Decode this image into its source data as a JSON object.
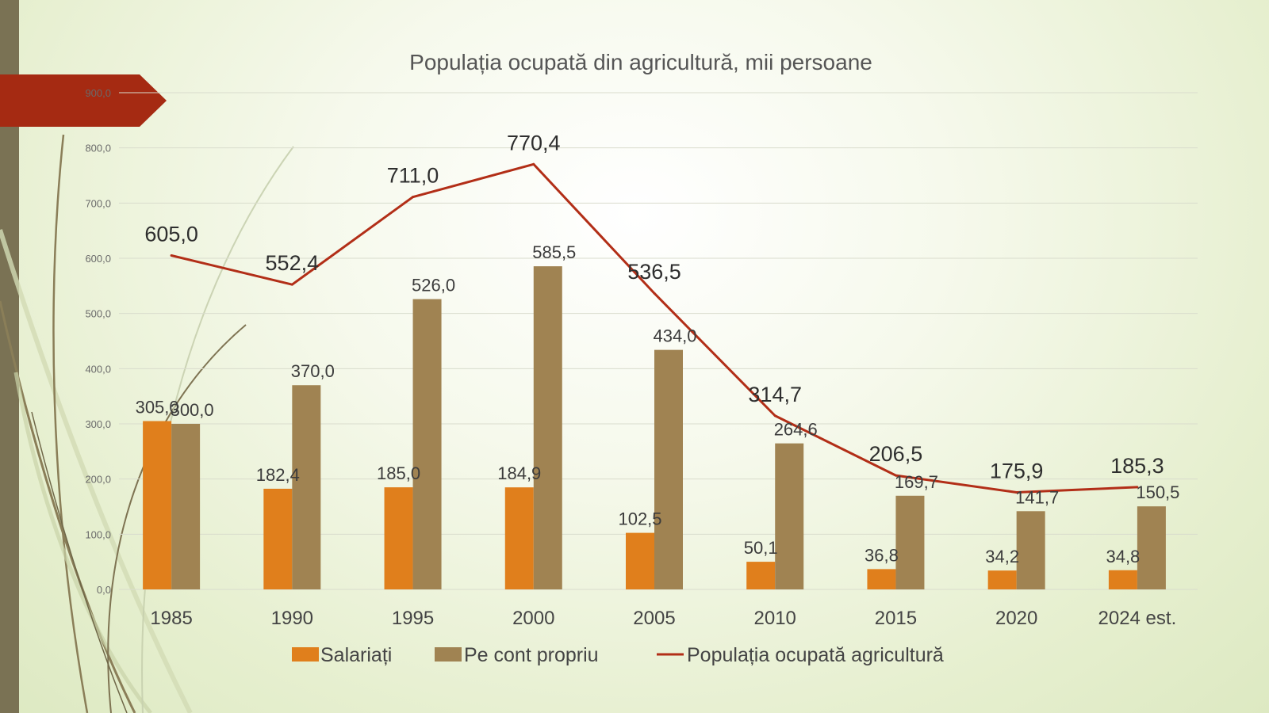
{
  "colors": {
    "salariati": "#e07f1c",
    "pe_cont_propriu": "#a08352",
    "line": "#b22e17",
    "accent_tab": "#a52a12",
    "sidebar": "#7a7254"
  },
  "chart_data": {
    "type": "bar",
    "title": "Populația ocupată din agricultură, mii persoane",
    "categories": [
      "1985",
      "1990",
      "1995",
      "2000",
      "2005",
      "2010",
      "2015",
      "2020",
      "2024 est."
    ],
    "ylim": [
      0,
      900
    ],
    "y_ticks": [
      "0,0",
      "100,0",
      "200,0",
      "300,0",
      "400,0",
      "500,0",
      "600,0",
      "700,0",
      "800,0",
      "900,0"
    ],
    "grid": true,
    "legend_position": "bottom",
    "series": [
      {
        "name": "Salariați",
        "kind": "bar",
        "values": [
          305.0,
          182.4,
          185.0,
          184.9,
          102.5,
          50.1,
          36.8,
          34.2,
          34.8
        ],
        "labels": [
          "305,0",
          "182,4",
          "185,0",
          "184,9",
          "102,5",
          "50,1",
          "36,8",
          "34,2",
          "34,8"
        ]
      },
      {
        "name": "Pe cont propriu",
        "kind": "bar",
        "values": [
          300.0,
          370.0,
          526.0,
          585.5,
          434.0,
          264.6,
          169.7,
          141.7,
          150.5
        ],
        "labels": [
          "300,0",
          "370,0",
          "526,0",
          "585,5",
          "434,0",
          "264,6",
          "169,7",
          "141,7",
          "150,5"
        ]
      },
      {
        "name": "Populația ocupată agricultură",
        "kind": "line",
        "values": [
          605.0,
          552.4,
          711.0,
          770.4,
          536.5,
          314.7,
          206.5,
          175.9,
          185.3
        ],
        "labels": [
          "605,0",
          "552,4",
          "711,0",
          "770,4",
          "536,5",
          "314,7",
          "206,5",
          "175,9",
          "185,3"
        ]
      }
    ]
  }
}
